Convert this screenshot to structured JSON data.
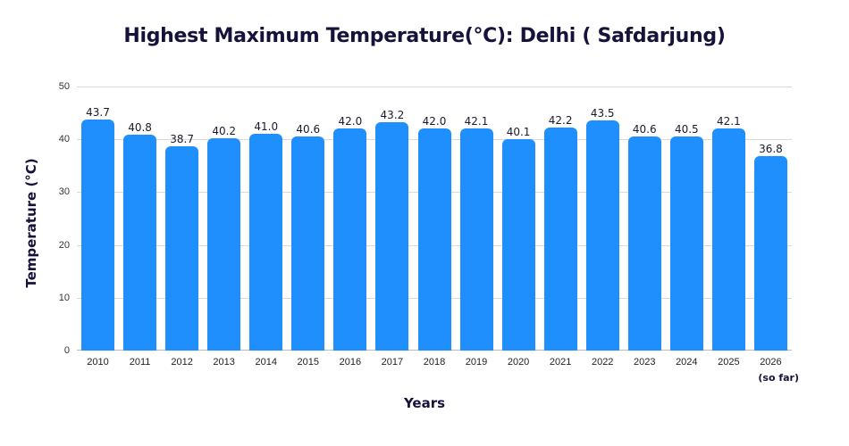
{
  "chart_data": {
    "type": "bar",
    "title": "Highest Maximum Temperature(°C): Delhi ( Safdarjung)",
    "xlabel": "Years",
    "ylabel": "Temperature (°C)",
    "categories": [
      "2010",
      "2011",
      "2012",
      "2013",
      "2014",
      "2015",
      "2016",
      "2017",
      "2018",
      "2019",
      "2020",
      "2021",
      "2022",
      "2023",
      "2024",
      "2025",
      "2026"
    ],
    "values": [
      43.7,
      40.8,
      38.7,
      40.2,
      41.0,
      40.6,
      42.0,
      43.2,
      42.0,
      42.1,
      40.1,
      42.2,
      43.5,
      40.6,
      40.5,
      42.1,
      36.8
    ],
    "value_labels": [
      "43.7",
      "40.8",
      "38.7",
      "40.2",
      "41.0",
      "40.6",
      "42.0",
      "43.2",
      "42.0",
      "42.1",
      "40.1",
      "42.2",
      "43.5",
      "40.6",
      "40.5",
      "42.1",
      "36.8"
    ],
    "yticks": [
      0,
      10,
      20,
      30,
      40,
      50
    ],
    "ylim": [
      0,
      50
    ],
    "grid": true,
    "legend": null,
    "annotations": [
      "(so far)"
    ],
    "bar_color": "#1f8ffe"
  }
}
